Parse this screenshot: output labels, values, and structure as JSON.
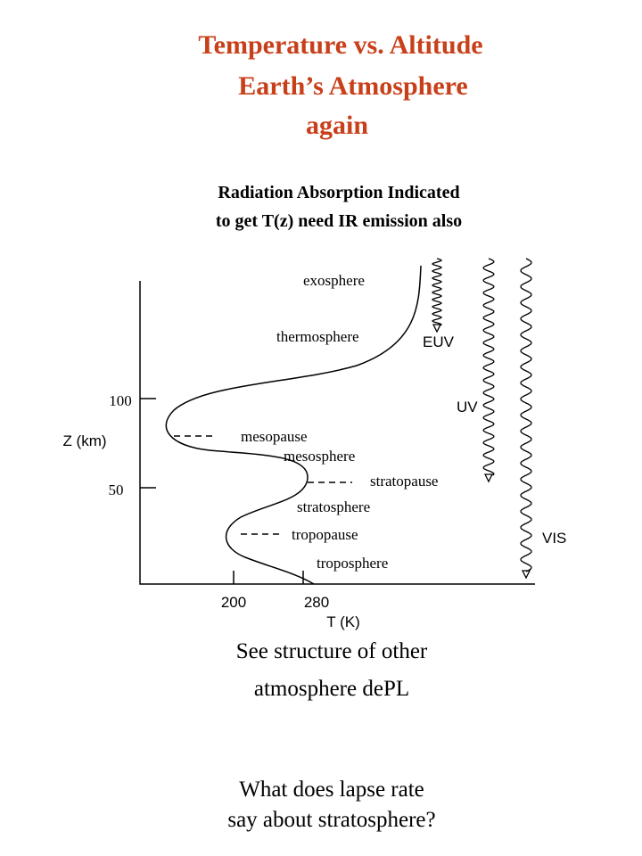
{
  "title": [
    "Temperature vs. Altitude",
    "Earth’s Atmosphere",
    "again"
  ],
  "subtitle": [
    "Radiation Absorption Indicated",
    "to get T(z) need IR emission also"
  ],
  "diagram": {
    "y_axis_label": "Z (km)",
    "y_ticks": [
      "100",
      "50"
    ],
    "x_axis_label": "T (K)",
    "x_ticks": [
      "200",
      "280"
    ],
    "layers": [
      "exosphere",
      "thermosphere",
      "mesopause",
      "mesosphere",
      "stratopause",
      "stratosphere",
      "tropopause",
      "troposphere"
    ],
    "radiation": [
      "EUV",
      "UV",
      "VIS"
    ]
  },
  "notes": [
    [
      "See structure of other",
      "atmosphere dePL"
    ],
    [
      "What does lapse rate",
      "say about stratosphere?"
    ]
  ]
}
